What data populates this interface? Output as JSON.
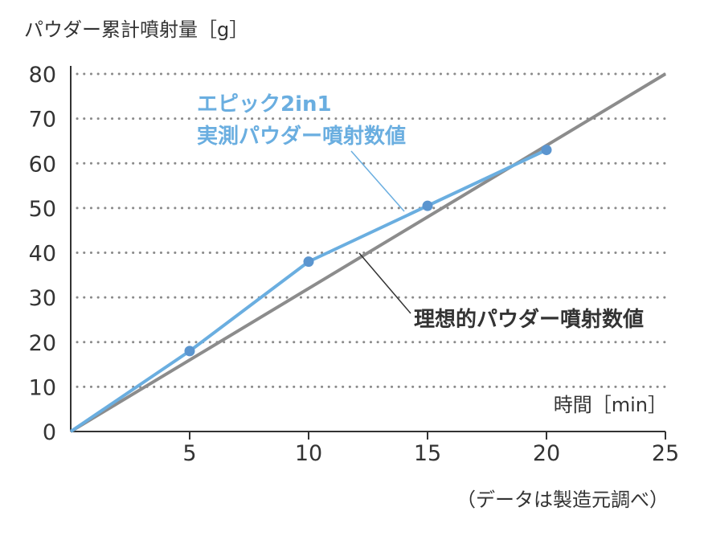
{
  "chart_data": {
    "type": "line",
    "ylabel": "パウダー累計噴射量［g］",
    "xlabel": "時間［min］",
    "xlim": [
      0,
      25
    ],
    "ylim": [
      0,
      80
    ],
    "x_ticks": [
      5,
      10,
      15,
      20,
      25
    ],
    "y_ticks": [
      0,
      10,
      20,
      30,
      40,
      50,
      60,
      70,
      80
    ],
    "grid": "horizontal dotted",
    "series": [
      {
        "name": "エピック2in1\n実測パウダー噴射数値",
        "label_lines": [
          "エピック2in1",
          "実測パウダー噴射数値"
        ],
        "color": "#6aaee0",
        "marker_color": "#5b95cf",
        "x": [
          0,
          5,
          10,
          15,
          20
        ],
        "y": [
          0,
          18,
          38,
          50.5,
          63
        ],
        "markers_at": [
          5,
          10,
          15,
          20
        ]
      },
      {
        "name": "理想的パウダー噴射数値",
        "color": "#8c8c8c",
        "x": [
          0,
          25
        ],
        "y": [
          0,
          80
        ]
      }
    ],
    "note": "（データは製造元調べ）"
  }
}
